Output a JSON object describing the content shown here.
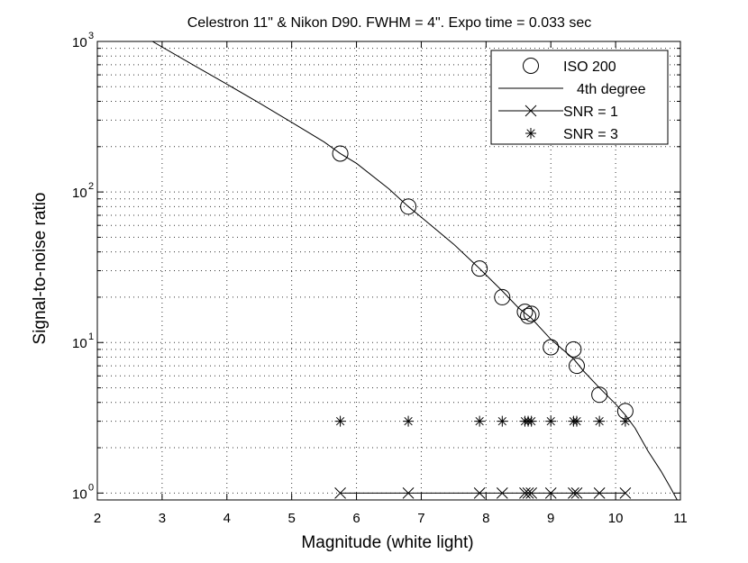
{
  "chart_data": {
    "type": "scatter",
    "title": "Celestron 11\" & Nikon D90. FWHM = 4\".  Expo time = 0.033 sec",
    "xlabel": "Magnitude  (white light)",
    "ylabel": "Signal-to-noise ratio",
    "xlim": [
      2,
      11
    ],
    "ylim": [
      0.9,
      1000
    ],
    "yscale": "log",
    "grid": true,
    "legend_position": "top-right",
    "x_ticks": [
      "2",
      "3",
      "4",
      "5",
      "6",
      "7",
      "8",
      "9",
      "10",
      "11"
    ],
    "y_ticks": [
      {
        "value": 1,
        "base": "10",
        "exp": "0"
      },
      {
        "value": 10,
        "base": "10",
        "exp": "1"
      },
      {
        "value": 100,
        "base": "10",
        "exp": "2"
      },
      {
        "value": 1000,
        "base": "10",
        "exp": "3"
      }
    ],
    "series": [
      {
        "name": "ISO 200",
        "marker": "circle",
        "x": [
          5.75,
          6.8,
          7.9,
          8.25,
          8.6,
          8.65,
          8.7,
          9.0,
          9.35,
          9.4,
          9.75,
          10.15
        ],
        "y": [
          180,
          80,
          31,
          20,
          16,
          15,
          15.5,
          9.3,
          9.0,
          7.0,
          4.5,
          3.5
        ]
      },
      {
        "name": "4th degree",
        "marker": "none",
        "x": [
          2.85,
          3.5,
          4.0,
          4.5,
          5.0,
          5.5,
          5.75,
          6.0,
          6.5,
          6.8,
          7.0,
          7.5,
          7.9,
          8.25,
          8.5,
          8.7,
          9.0,
          9.35,
          9.5,
          9.75,
          10.0,
          10.15,
          10.3,
          10.5,
          10.7,
          10.85,
          10.95
        ],
        "y": [
          1000,
          690,
          520,
          390,
          290,
          215,
          180,
          155,
          105,
          80,
          68,
          45,
          31,
          22,
          17,
          14.5,
          10.5,
          7.8,
          6.5,
          5.0,
          3.9,
          3.3,
          2.7,
          1.9,
          1.4,
          1.08,
          0.9
        ]
      },
      {
        "name": "SNR = 1",
        "marker": "x",
        "x": [
          5.75,
          6.8,
          7.9,
          8.25,
          8.6,
          8.65,
          8.7,
          9.0,
          9.35,
          9.4,
          9.75,
          10.15
        ],
        "y": [
          1,
          1,
          1,
          1,
          1,
          1,
          1,
          1,
          1,
          1,
          1,
          1
        ]
      },
      {
        "name": "SNR = 3",
        "marker": "asterisk",
        "x": [
          5.75,
          6.8,
          7.9,
          8.25,
          8.6,
          8.65,
          8.7,
          9.0,
          9.35,
          9.4,
          9.75,
          10.15
        ],
        "y": [
          3,
          3,
          3,
          3,
          3,
          3,
          3,
          3,
          3,
          3,
          3,
          3
        ]
      }
    ]
  }
}
